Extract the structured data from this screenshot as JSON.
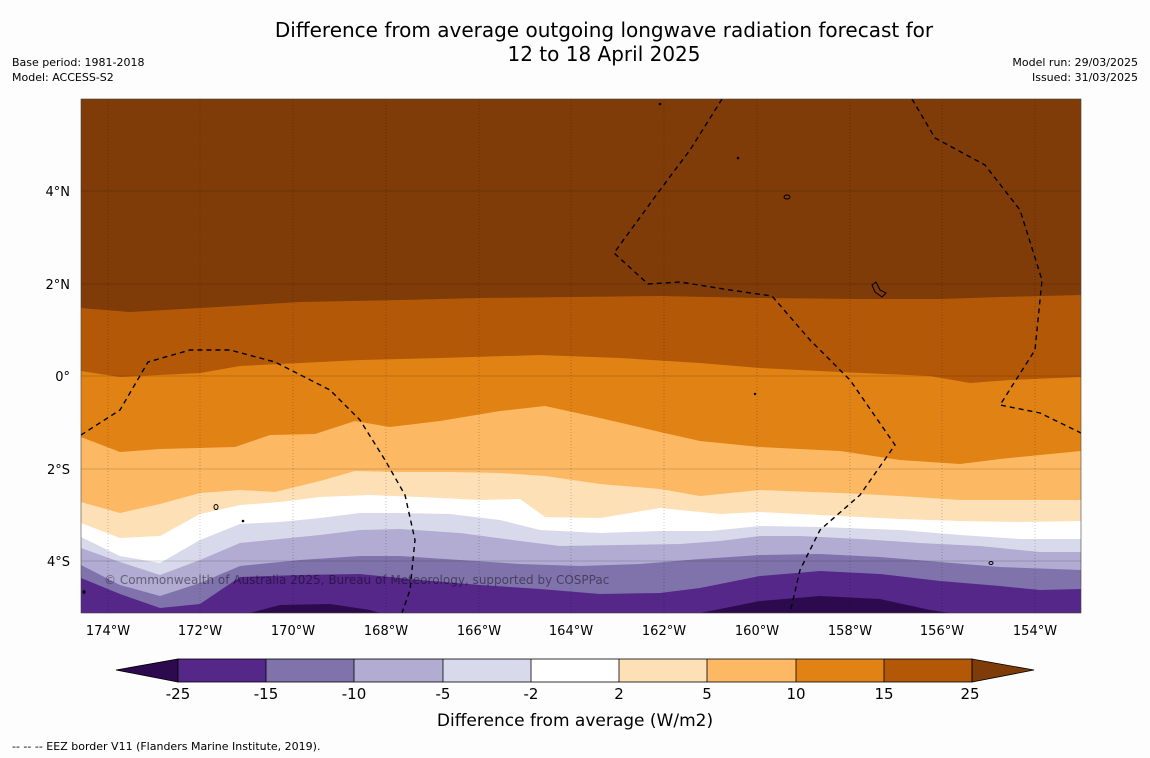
{
  "title": {
    "line1": "Difference from average outgoing longwave radiation forecast for",
    "line2": "12 to 18 April 2025"
  },
  "meta_left": {
    "base_period": "Base period: 1981-2018",
    "model": "Model: ACCESS-S2"
  },
  "meta_right": {
    "model_run": "Model run: 29/03/2025",
    "issued": "Issued: 31/03/2025"
  },
  "map": {
    "lat_labels": [
      "4°N",
      "2°N",
      "0°",
      "2°S",
      "4°S"
    ],
    "lon_labels": [
      "174°W",
      "172°W",
      "170°W",
      "168°W",
      "166°W",
      "164°W",
      "162°W",
      "160°W",
      "158°W",
      "156°W",
      "154°W"
    ],
    "copyright": "© Commonwealth of Australia 2025, Bureau of Meteorology, supported by COSPPac"
  },
  "colorbar": {
    "label": "Difference from average (W/m2)",
    "ticks": [
      "-25",
      "-15",
      "-10",
      "-5",
      "-2",
      "2",
      "5",
      "10",
      "15",
      "25"
    ],
    "colors": {
      "below_min": "#2d0a4e",
      "c1": "#542788",
      "c2": "#8073ac",
      "c3": "#b2abd2",
      "c4": "#d8daeb",
      "c5": "#ffffff",
      "c6": "#fee0b6",
      "c7": "#fdb863",
      "c8": "#e08214",
      "c9": "#b35806",
      "above_max": "#7f3b08"
    }
  },
  "footer": {
    "legend_text": "--  --  -- EEZ border V11 (Flanders Marine Institute, 2019)."
  }
}
